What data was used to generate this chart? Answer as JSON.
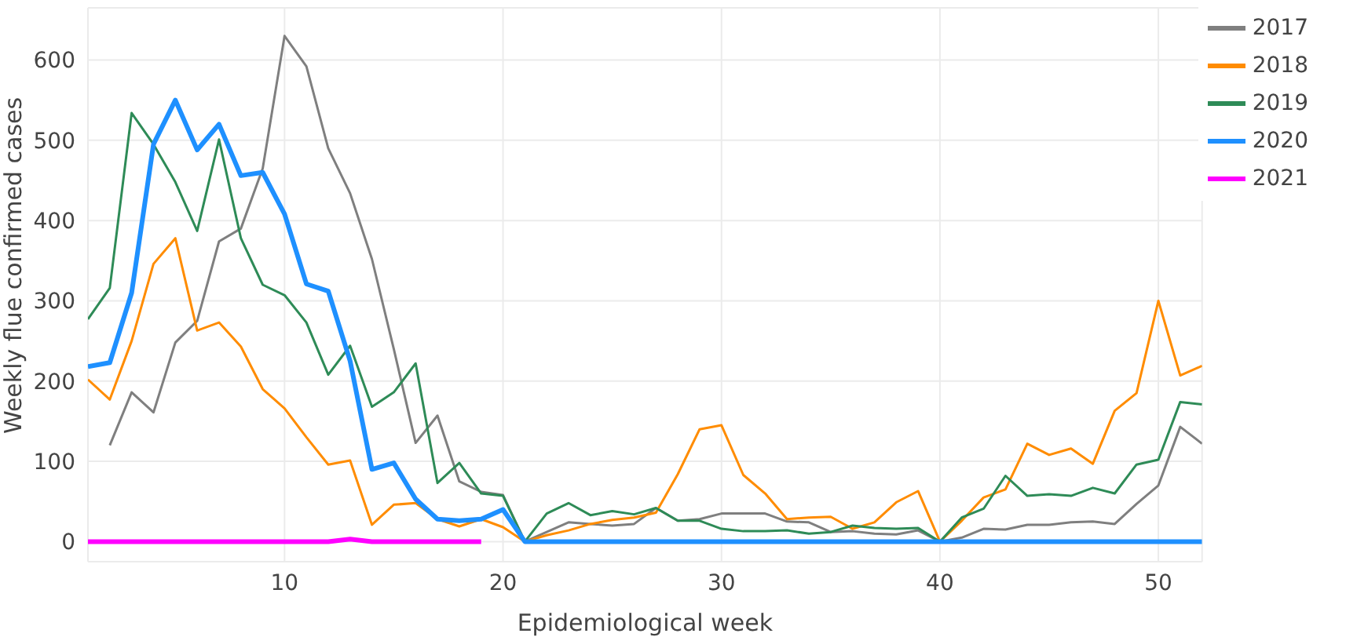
{
  "chart_data": {
    "type": "line",
    "xlabel": "Epidemiological week",
    "ylabel": "Weekly flue confirmed cases",
    "x": [
      1,
      2,
      3,
      4,
      5,
      6,
      7,
      8,
      9,
      10,
      11,
      12,
      13,
      14,
      15,
      16,
      17,
      18,
      19,
      20,
      21,
      22,
      23,
      24,
      25,
      26,
      27,
      28,
      29,
      30,
      31,
      32,
      33,
      34,
      35,
      36,
      37,
      38,
      39,
      40,
      41,
      42,
      43,
      44,
      45,
      46,
      47,
      48,
      49,
      50,
      51,
      52
    ],
    "series": [
      {
        "name": "2017",
        "color": "#7f7f7f",
        "values": [
          null,
          120,
          186,
          161,
          248,
          275,
          374,
          390,
          465,
          630,
          592,
          490,
          434,
          352,
          240,
          123,
          157,
          75,
          62,
          58,
          0,
          12,
          24,
          22,
          20,
          22,
          42,
          26,
          28,
          35,
          35,
          35,
          25,
          24,
          12,
          13,
          10,
          9,
          14,
          0,
          5,
          16,
          15,
          21,
          21,
          24,
          25,
          22,
          47,
          70,
          143,
          122
        ]
      },
      {
        "name": "2018",
        "color": "#ff8c00",
        "values": [
          202,
          177,
          250,
          346,
          378,
          263,
          273,
          243,
          190,
          166,
          130,
          96,
          101,
          21,
          46,
          48,
          28,
          19,
          28,
          18,
          0,
          8,
          14,
          22,
          27,
          30,
          36,
          84,
          140,
          145,
          83,
          60,
          28,
          30,
          31,
          16,
          24,
          49,
          63,
          0,
          26,
          55,
          65,
          122,
          108,
          116,
          97,
          163,
          185,
          300,
          207,
          219
        ]
      },
      {
        "name": "2019",
        "color": "#2e8b57",
        "values": [
          277,
          316,
          534,
          495,
          448,
          387,
          501,
          378,
          320,
          307,
          273,
          208,
          244,
          168,
          186,
          222,
          73,
          98,
          60,
          57,
          0,
          35,
          48,
          33,
          38,
          34,
          42,
          26,
          26,
          16,
          13,
          13,
          14,
          10,
          12,
          20,
          17,
          16,
          17,
          0,
          30,
          41,
          82,
          57,
          59,
          57,
          67,
          60,
          96,
          102,
          174,
          171
        ]
      },
      {
        "name": "2020",
        "color": "#1e90ff",
        "values": [
          218,
          223,
          310,
          495,
          550,
          488,
          520,
          456,
          460,
          408,
          321,
          312,
          225,
          90,
          98,
          53,
          28,
          26,
          28,
          40,
          0,
          0,
          0,
          0,
          0,
          0,
          0,
          0,
          0,
          0,
          0,
          0,
          0,
          0,
          0,
          0,
          0,
          0,
          0,
          0,
          0,
          0,
          0,
          0,
          0,
          0,
          0,
          0,
          0,
          0,
          0,
          0
        ]
      },
      {
        "name": "2021",
        "color": "#ff00ff",
        "values": [
          0,
          0,
          0,
          0,
          0,
          0,
          0,
          0,
          0,
          0,
          0,
          0,
          3,
          0,
          0,
          0,
          0,
          0,
          0,
          null,
          null,
          null,
          null,
          null,
          null,
          null,
          null,
          null,
          null,
          null,
          null,
          null,
          null,
          null,
          null,
          null,
          null,
          null,
          null,
          null,
          null,
          null,
          null,
          null,
          null,
          null,
          null,
          null,
          null,
          null,
          null,
          null
        ]
      }
    ],
    "xlim": [
      1,
      52
    ],
    "xticks": [
      10,
      20,
      30,
      40,
      50
    ],
    "ylim": [
      -25,
      665
    ],
    "yticks": [
      0,
      100,
      200,
      300,
      400,
      500,
      600
    ],
    "grid": true,
    "legend": "top right",
    "marker": "none",
    "line_style": "solid"
  }
}
